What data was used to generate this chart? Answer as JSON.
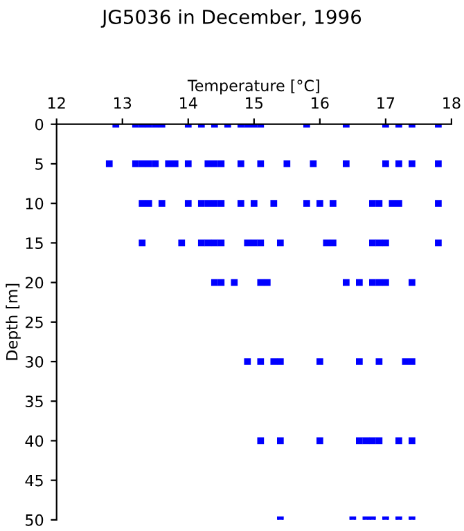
{
  "chart_data": {
    "type": "scatter",
    "title": "JG5036 in December, 1996",
    "xlabel": "Temperature [°C]",
    "ylabel": "Depth [m]",
    "xlim": [
      12,
      18
    ],
    "xticks": [
      12,
      13,
      14,
      15,
      16,
      17,
      18
    ],
    "ylim": [
      50,
      0
    ],
    "yticks": [
      0,
      5,
      10,
      15,
      20,
      25,
      30,
      35,
      40,
      45,
      50
    ],
    "grid": false,
    "legend": false,
    "marker": "square",
    "series": [
      {
        "color": "#0000ff",
        "x": [
          12.9,
          13.2,
          13.3,
          13.4,
          13.5,
          13.6,
          14.0,
          14.2,
          14.4,
          14.6,
          14.8,
          14.9,
          15.0,
          15.1,
          15.8,
          16.4,
          17.0,
          17.2,
          17.4,
          17.8
        ],
        "values": [
          0,
          0,
          0,
          0,
          0,
          0,
          0,
          0,
          0,
          0,
          0,
          0,
          0,
          0,
          0,
          0,
          0,
          0,
          0,
          0
        ]
      },
      {
        "color": "#0000ff",
        "x": [
          12.8,
          13.2,
          13.3,
          13.4,
          13.5,
          13.7,
          13.8,
          14.0,
          14.3,
          14.4,
          14.5,
          14.8,
          15.1,
          15.5,
          15.9,
          16.4,
          17.0,
          17.2,
          17.4,
          17.8
        ],
        "values": [
          5,
          5,
          5,
          5,
          5,
          5,
          5,
          5,
          5,
          5,
          5,
          5,
          5,
          5,
          5,
          5,
          5,
          5,
          5,
          5
        ]
      },
      {
        "color": "#0000ff",
        "x": [
          13.3,
          13.4,
          13.6,
          14.0,
          14.2,
          14.3,
          14.4,
          14.5,
          14.8,
          15.0,
          15.3,
          15.8,
          16.0,
          16.2,
          16.8,
          16.9,
          17.1,
          17.2,
          17.8
        ],
        "values": [
          10,
          10,
          10,
          10,
          10,
          10,
          10,
          10,
          10,
          10,
          10,
          10,
          10,
          10,
          10,
          10,
          10,
          10,
          10
        ]
      },
      {
        "color": "#0000ff",
        "x": [
          13.3,
          13.9,
          14.2,
          14.3,
          14.4,
          14.5,
          14.9,
          15.0,
          15.1,
          15.4,
          16.1,
          16.2,
          16.8,
          16.9,
          17.0,
          17.8
        ],
        "values": [
          15,
          15,
          15,
          15,
          15,
          15,
          15,
          15,
          15,
          15,
          15,
          15,
          15,
          15,
          15,
          15
        ]
      },
      {
        "color": "#0000ff",
        "x": [
          14.4,
          14.5,
          14.7,
          15.1,
          15.2,
          16.4,
          16.6,
          16.8,
          16.9,
          17.0,
          17.4
        ],
        "values": [
          20,
          20,
          20,
          20,
          20,
          20,
          20,
          20,
          20,
          20,
          20
        ]
      },
      {
        "color": "#0000ff",
        "x": [
          14.9,
          15.1,
          15.3,
          15.4,
          16.0,
          16.6,
          16.9,
          17.3,
          17.4
        ],
        "values": [
          30,
          30,
          30,
          30,
          30,
          30,
          30,
          30,
          30
        ]
      },
      {
        "color": "#0000ff",
        "x": [
          15.1,
          15.4,
          16.0,
          16.6,
          16.7,
          16.8,
          16.9,
          17.2,
          17.4
        ],
        "values": [
          40,
          40,
          40,
          40,
          40,
          40,
          40,
          40,
          40
        ]
      },
      {
        "color": "#0000ff",
        "x": [
          15.4,
          16.5,
          16.7,
          16.8,
          17.0,
          17.2,
          17.4
        ],
        "values": [
          50,
          50,
          50,
          50,
          50,
          50,
          50
        ]
      }
    ]
  }
}
